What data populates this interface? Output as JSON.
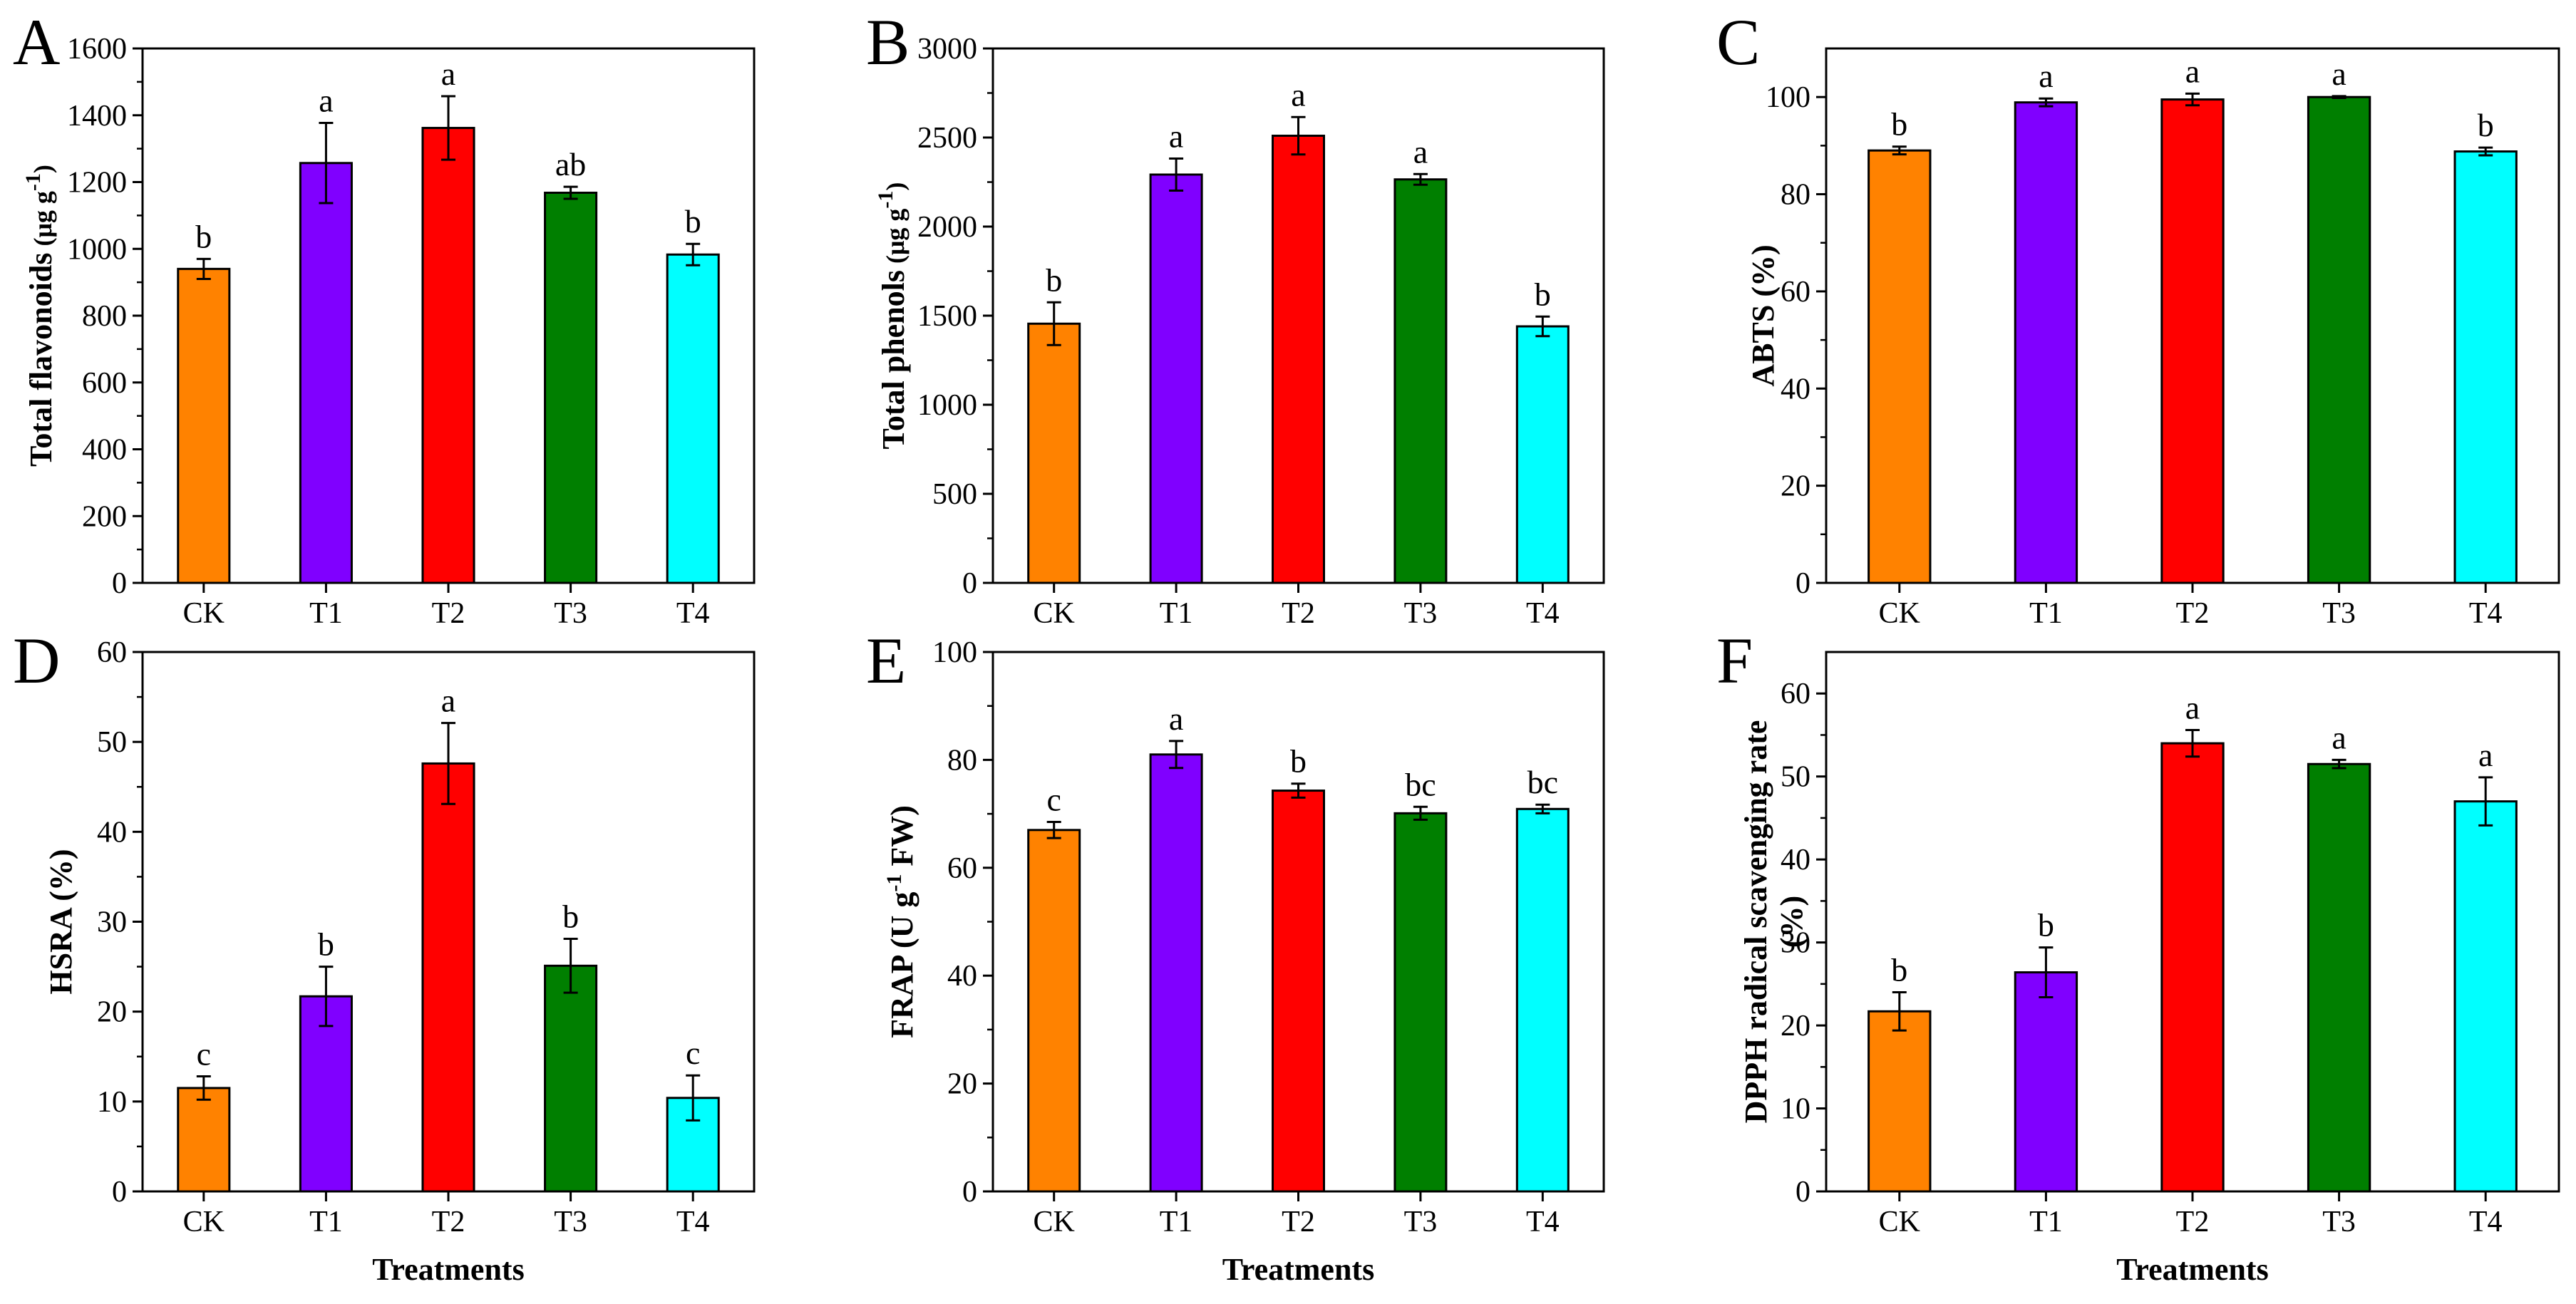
{
  "chart_data": [
    {
      "type": "bar",
      "panel": "A",
      "ylabel": "Total flavonoids",
      "yunit": "(μg g",
      "yunit_sup": "-1",
      "yunit_close": ")",
      "xlabel": "",
      "ylim": [
        0,
        1600
      ],
      "yticks": [
        0,
        200,
        400,
        600,
        800,
        1000,
        1200,
        1400,
        1600
      ],
      "categories": [
        "CK",
        "T1",
        "T2",
        "T3",
        "T4"
      ],
      "values": [
        940,
        1257,
        1362,
        1168,
        983
      ],
      "errors": [
        30,
        120,
        95,
        18,
        32
      ],
      "letters": [
        "b",
        "a",
        "a",
        "ab",
        "b"
      ],
      "colors": [
        "#FF8200",
        "#8000FF",
        "#FF0000",
        "#007F00",
        "#00FFFF"
      ]
    },
    {
      "type": "bar",
      "panel": "B",
      "ylabel": "Total phenols",
      "yunit": "(μg g",
      "yunit_sup": "-1",
      "yunit_close": ")",
      "xlabel": "",
      "ylim": [
        0,
        3000
      ],
      "yticks": [
        0,
        500,
        1000,
        1500,
        2000,
        2500,
        3000
      ],
      "categories": [
        "CK",
        "T1",
        "T2",
        "T3",
        "T4"
      ],
      "values": [
        1455,
        2292,
        2510,
        2265,
        1440
      ],
      "errors": [
        120,
        90,
        105,
        30,
        55
      ],
      "letters": [
        "b",
        "a",
        "a",
        "a",
        "b"
      ],
      "colors": [
        "#FF8200",
        "#8000FF",
        "#FF0000",
        "#007F00",
        "#00FFFF"
      ]
    },
    {
      "type": "bar",
      "panel": "C",
      "ylabel": "ABTS (%)",
      "xlabel": "",
      "ylim": [
        0,
        110
      ],
      "yticks": [
        0,
        20,
        40,
        60,
        80,
        100
      ],
      "categories": [
        "CK",
        "T1",
        "T2",
        "T3",
        "T4"
      ],
      "values": [
        89.0,
        98.9,
        99.5,
        100.0,
        88.8
      ],
      "errors": [
        0.8,
        0.8,
        1.2,
        0.2,
        0.8
      ],
      "letters": [
        "b",
        "a",
        "a",
        "a",
        "b"
      ],
      "colors": [
        "#FF8200",
        "#8000FF",
        "#FF0000",
        "#007F00",
        "#00FFFF"
      ]
    },
    {
      "type": "bar",
      "panel": "D",
      "ylabel": "HSRA (%)",
      "xlabel": "Treatments",
      "ylim": [
        0,
        60
      ],
      "yticks": [
        0,
        10,
        20,
        30,
        40,
        50,
        60
      ],
      "categories": [
        "CK",
        "T1",
        "T2",
        "T3",
        "T4"
      ],
      "values": [
        11.5,
        21.7,
        47.6,
        25.1,
        10.4
      ],
      "errors": [
        1.3,
        3.3,
        4.5,
        3.0,
        2.5
      ],
      "letters": [
        "c",
        "b",
        "a",
        "b",
        "c"
      ],
      "colors": [
        "#FF8200",
        "#8000FF",
        "#FF0000",
        "#007F00",
        "#00FFFF"
      ]
    },
    {
      "type": "bar",
      "panel": "E",
      "ylabel": "FRAP (U g",
      "yunit_sup": "-1",
      "yunit_close": " FW)",
      "xlabel": "Treatments",
      "ylim": [
        0,
        100
      ],
      "yticks": [
        0,
        20,
        40,
        60,
        80,
        100
      ],
      "categories": [
        "CK",
        "T1",
        "T2",
        "T3",
        "T4"
      ],
      "values": [
        67.0,
        81.0,
        74.3,
        70.1,
        70.9
      ],
      "errors": [
        1.5,
        2.5,
        1.3,
        1.2,
        0.8
      ],
      "letters": [
        "c",
        "a",
        "b",
        "bc",
        "bc"
      ],
      "colors": [
        "#FF8200",
        "#8000FF",
        "#FF0000",
        "#007F00",
        "#00FFFF"
      ]
    },
    {
      "type": "bar",
      "panel": "F",
      "ylabel": "DPPH radical scavenging rate",
      "ylabel2": "(%)",
      "xlabel": "Treatments",
      "ylim": [
        0,
        65
      ],
      "yticks": [
        0,
        10,
        20,
        30,
        40,
        50,
        60
      ],
      "categories": [
        "CK",
        "T1",
        "T2",
        "T3",
        "T4"
      ],
      "values": [
        21.7,
        26.4,
        54.0,
        51.5,
        47.0
      ],
      "errors": [
        2.3,
        3.0,
        1.6,
        0.5,
        2.9
      ],
      "letters": [
        "b",
        "b",
        "a",
        "a",
        "a"
      ],
      "colors": [
        "#FF8200",
        "#8000FF",
        "#FF0000",
        "#007F00",
        "#00FFFF"
      ]
    }
  ]
}
